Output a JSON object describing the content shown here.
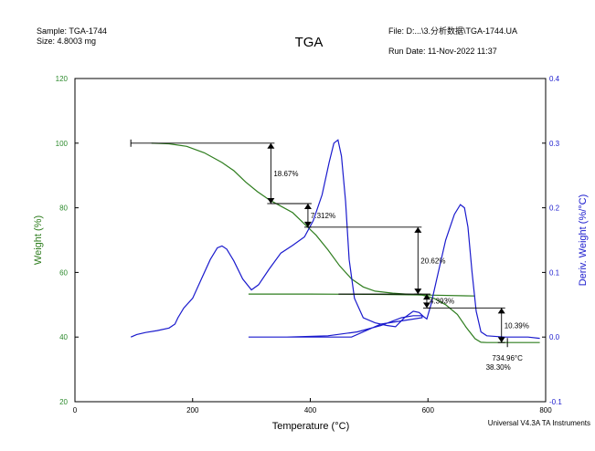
{
  "header": {
    "sample_label": "Sample: TGA-1744",
    "size_label": "Size:  4.8003 mg",
    "title": "TGA",
    "file_label": "File: D:...\\3.分析数据\\TGA-1744.UA",
    "run_date_label": "Run Date: 11-Nov-2022 11:37"
  },
  "footer": {
    "instrument": "Universal V4.3A TA Instruments"
  },
  "colors": {
    "weight": "#2e7d1e",
    "deriv": "#1a1acd",
    "axis_left_text": "#2e8b2e",
    "axis_right_text": "#1a1acd",
    "annotation": "#000000"
  },
  "chart_data": {
    "type": "line",
    "title": "TGA",
    "xlabel": "Temperature (°C)",
    "ylabel_left": "Weight (%)",
    "ylabel_right": "Deriv. Weight (%/°C)",
    "xlim": [
      0,
      800
    ],
    "ylim_left": [
      20,
      120
    ],
    "ylim_right": [
      -0.1,
      0.4
    ],
    "x_ticks": [
      0,
      200,
      400,
      600,
      800
    ],
    "y_ticks_left": [
      20,
      40,
      60,
      80,
      100,
      120
    ],
    "y_ticks_right": [
      -0.1,
      0.0,
      0.1,
      0.2,
      0.3,
      0.4
    ],
    "y_tick_labels_right": [
      "-0.1",
      "0.0",
      "0.1",
      "0.2",
      "0.3",
      "0.4"
    ],
    "grid": false,
    "series": [
      {
        "name": "Weight (%)",
        "axis": "left",
        "points": [
          [
            130,
            100
          ],
          [
            160,
            99.8
          ],
          [
            190,
            99
          ],
          [
            220,
            97
          ],
          [
            250,
            94
          ],
          [
            270,
            91.5
          ],
          [
            290,
            88
          ],
          [
            310,
            85
          ],
          [
            330,
            82.5
          ],
          [
            350,
            80.5
          ],
          [
            370,
            78.5
          ],
          [
            390,
            75
          ],
          [
            410,
            71.5
          ],
          [
            430,
            67
          ],
          [
            450,
            62
          ],
          [
            470,
            58
          ],
          [
            490,
            55.5
          ],
          [
            510,
            54.2
          ],
          [
            540,
            53.6
          ],
          [
            570,
            53.2
          ],
          [
            590,
            53
          ],
          [
            610,
            52
          ],
          [
            630,
            50
          ],
          [
            650,
            47
          ],
          [
            665,
            43
          ],
          [
            680,
            39.5
          ],
          [
            690,
            38.4
          ],
          [
            700,
            38.3
          ],
          [
            740,
            38.3
          ],
          [
            790,
            38.3
          ]
        ]
      },
      {
        "name": "Weight (%) isothermal trace",
        "axis": "left",
        "points": [
          [
            295,
            53.3
          ],
          [
            400,
            53.3
          ],
          [
            520,
            53.2
          ],
          [
            600,
            53.0
          ],
          [
            680,
            52.7
          ]
        ]
      },
      {
        "name": "Deriv. Weight (%/°C)",
        "axis": "right",
        "points": [
          [
            95,
            0.0
          ],
          [
            105,
            0.004
          ],
          [
            120,
            0.007
          ],
          [
            140,
            0.01
          ],
          [
            160,
            0.014
          ],
          [
            170,
            0.02
          ],
          [
            175,
            0.03
          ],
          [
            185,
            0.045
          ],
          [
            200,
            0.06
          ],
          [
            215,
            0.09
          ],
          [
            230,
            0.12
          ],
          [
            242,
            0.138
          ],
          [
            250,
            0.141
          ],
          [
            258,
            0.136
          ],
          [
            270,
            0.118
          ],
          [
            285,
            0.09
          ],
          [
            300,
            0.073
          ],
          [
            312,
            0.081
          ],
          [
            330,
            0.105
          ],
          [
            350,
            0.13
          ],
          [
            370,
            0.142
          ],
          [
            390,
            0.155
          ],
          [
            405,
            0.18
          ],
          [
            420,
            0.22
          ],
          [
            432,
            0.27
          ],
          [
            440,
            0.3
          ],
          [
            447,
            0.305
          ],
          [
            453,
            0.28
          ],
          [
            460,
            0.21
          ],
          [
            466,
            0.12
          ],
          [
            475,
            0.06
          ],
          [
            490,
            0.03
          ],
          [
            510,
            0.022
          ],
          [
            530,
            0.018
          ],
          [
            545,
            0.016
          ],
          [
            560,
            0.03
          ],
          [
            575,
            0.04
          ],
          [
            585,
            0.038
          ],
          [
            592,
            0.032
          ],
          [
            598,
            0.028
          ],
          [
            605,
            0.05
          ],
          [
            615,
            0.09
          ],
          [
            630,
            0.15
          ],
          [
            645,
            0.19
          ],
          [
            655,
            0.205
          ],
          [
            662,
            0.2
          ],
          [
            668,
            0.17
          ],
          [
            675,
            0.1
          ],
          [
            682,
            0.04
          ],
          [
            690,
            0.008
          ],
          [
            700,
            0.002
          ],
          [
            730,
            0.0
          ],
          [
            770,
            0.0
          ],
          [
            790,
            -0.002
          ]
        ]
      },
      {
        "name": "Deriv. Weight (%/°C) isothermal trace",
        "axis": "right",
        "points": [
          [
            295,
            0.0
          ],
          [
            360,
            0.0
          ],
          [
            430,
            0.002
          ],
          [
            480,
            0.008
          ],
          [
            520,
            0.018
          ],
          [
            555,
            0.03
          ],
          [
            575,
            0.033
          ],
          [
            590,
            0.033
          ],
          [
            590,
            0.03
          ],
          [
            520,
            0.02
          ],
          [
            470,
            0.0
          ],
          [
            380,
            0.0
          ],
          [
            300,
            0.0
          ]
        ]
      }
    ],
    "annotations": [
      {
        "label": "18.67%",
        "x": 333,
        "y_top": 100.0,
        "y_bottom": 81.3,
        "line_start": 95
      },
      {
        "label": "7.312%",
        "x": 396,
        "y_top": 81.3,
        "y_bottom": 74.0,
        "line_start": 333
      },
      {
        "label": "20.62%",
        "x": 583,
        "y_top": 74.0,
        "y_bottom": 53.3,
        "line_start": 396
      },
      {
        "label": "4.393%",
        "x": 598,
        "y_top": 53.3,
        "y_bottom": 49.0,
        "line_start": 448
      },
      {
        "label": "10.39%",
        "x": 725,
        "y_top": 49.0,
        "y_bottom": 38.3,
        "line_start": 598
      },
      {
        "label": "734.96°C",
        "label2": "38.30%",
        "x": 735,
        "y": 38.3
      }
    ]
  }
}
